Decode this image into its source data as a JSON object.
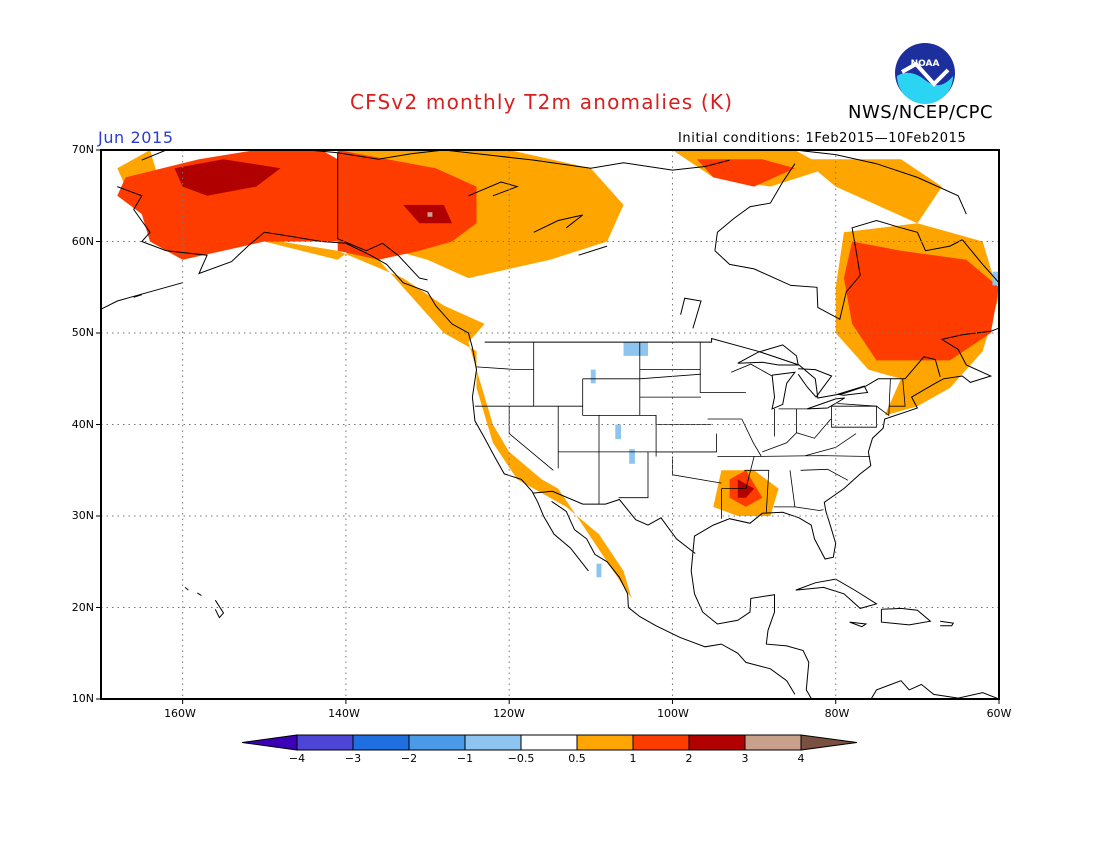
{
  "header": {
    "title": "CFSv2 monthly T2m anomalies (K)",
    "agency": "NWS/NCEP/CPC",
    "valid_month": "Jun 2015",
    "initial_conditions": "Initial conditions:  1Feb2015—10Feb2015",
    "logo_text": "NOAA"
  },
  "axes": {
    "lat_labels": [
      "70N",
      "60N",
      "50N",
      "40N",
      "30N",
      "20N",
      "10N"
    ],
    "lon_labels": [
      "160W",
      "140W",
      "120W",
      "100W",
      "80W",
      "60W"
    ]
  },
  "colorbar": {
    "labels": [
      "−4",
      "−3",
      "−2",
      "−1",
      "−0.5",
      "0.5",
      "1",
      "2",
      "3",
      "4"
    ],
    "colors": [
      "#3b00b8",
      "#4d45d6",
      "#1f6fe0",
      "#4a9ae8",
      "#8ec4f0",
      "#ffffff",
      "#ffa500",
      "#ff3c00",
      "#b00000",
      "#c8a08c",
      "#7a5040"
    ]
  },
  "map_data": {
    "colors": {
      "c05": "#ffa500",
      "c1": "#ff3c00",
      "c2": "#b00000",
      "c3": "#c8a08c",
      "cm05": "#8ec4f0"
    },
    "anomaly_regions": [
      {
        "level": "c05",
        "label": "0.5 to 1",
        "polys": [
          [
            [
              -164,
              70
            ],
            [
              -162,
              64
            ],
            [
              -155,
              62
            ],
            [
              -148,
              60
            ],
            [
              -141,
              59
            ],
            [
              -133,
              56
            ],
            [
              -128,
              53
            ],
            [
              -123,
              51
            ],
            [
              -125,
              49
            ],
            [
              -124,
              46
            ],
            [
              -122,
              40
            ],
            [
              -120,
              37
            ],
            [
              -116,
              34
            ],
            [
              -114,
              33
            ],
            [
              -111,
              29
            ],
            [
              -108,
              25
            ],
            [
              -105,
              21
            ],
            [
              -106,
              24
            ],
            [
              -109,
              28
            ],
            [
              -113,
              31
            ],
            [
              -117,
              33
            ],
            [
              -119,
              34
            ],
            [
              -122,
              38
            ],
            [
              -124,
              44
            ],
            [
              -124,
              48
            ],
            [
              -128,
              50
            ],
            [
              -134,
              56
            ],
            [
              -138,
              60
            ],
            [
              -141,
              58
            ],
            [
              -150,
              60
            ],
            [
              -156,
              62
            ],
            [
              -159,
              63
            ],
            [
              -166,
              64
            ],
            [
              -168,
              68
            ]
          ],
          [
            [
              -141,
              70
            ],
            [
              -120,
              70
            ],
            [
              -110,
              68
            ],
            [
              -106,
              64
            ],
            [
              -108,
              60
            ],
            [
              -115,
              58
            ],
            [
              -120,
              57
            ],
            [
              -125,
              56
            ],
            [
              -130,
              58
            ],
            [
              -138,
              60
            ],
            [
              -141,
              63
            ]
          ],
          [
            [
              -100,
              70
            ],
            [
              -85,
              70
            ],
            [
              -81,
              68
            ],
            [
              -88,
              66
            ],
            [
              -95,
              67
            ]
          ],
          [
            [
              -84,
              69
            ],
            [
              -72,
              69
            ],
            [
              -67,
              66
            ],
            [
              -70,
              62
            ],
            [
              -75,
              64
            ],
            [
              -80,
              66
            ]
          ],
          [
            [
              -79,
              61
            ],
            [
              -70,
              62
            ],
            [
              -62,
              60
            ],
            [
              -60,
              54
            ],
            [
              -62,
              48
            ],
            [
              -66,
              44
            ],
            [
              -70,
              42
            ],
            [
              -74,
              41
            ],
            [
              -72,
              45
            ],
            [
              -76,
              46
            ],
            [
              -80,
              50
            ],
            [
              -80,
              55
            ]
          ],
          [
            [
              -94,
              35
            ],
            [
              -90,
              35
            ],
            [
              -87,
              33
            ],
            [
              -88,
              30
            ],
            [
              -92,
              30
            ],
            [
              -95,
              31
            ]
          ]
        ]
      },
      {
        "level": "c1",
        "label": "1 to 2",
        "polys": [
          [
            [
              -167,
              67
            ],
            [
              -158,
              69
            ],
            [
              -151,
              70
            ],
            [
              -143,
              70
            ],
            [
              -141,
              69
            ],
            [
              -141,
              60
            ],
            [
              -145,
              60
            ],
            [
              -150,
              60
            ],
            [
              -155,
              59
            ],
            [
              -160,
              58
            ],
            [
              -164,
              60
            ],
            [
              -165,
              63
            ],
            [
              -168,
              65
            ]
          ],
          [
            [
              -141,
              70
            ],
            [
              -129,
              68
            ],
            [
              -124,
              66
            ],
            [
              -124,
              62
            ],
            [
              -127,
              60
            ],
            [
              -131,
              59
            ],
            [
              -136,
              58
            ],
            [
              -141,
              59
            ]
          ],
          [
            [
              -97,
              69
            ],
            [
              -89,
              69
            ],
            [
              -85,
              68
            ],
            [
              -90,
              66
            ],
            [
              -95,
              67
            ]
          ],
          [
            [
              -78,
              60
            ],
            [
              -72,
              59
            ],
            [
              -64,
              58
            ],
            [
              -60,
              55
            ],
            [
              -61,
              50
            ],
            [
              -66,
              47
            ],
            [
              -70,
              47
            ],
            [
              -75,
              47
            ],
            [
              -78,
              51
            ],
            [
              -79,
              56
            ]
          ],
          [
            [
              -93,
              34
            ],
            [
              -91,
              35
            ],
            [
              -89,
              32
            ],
            [
              -91,
              31
            ],
            [
              -93,
              32
            ]
          ]
        ]
      },
      {
        "level": "c2",
        "label": "2 to 3",
        "polys": [
          [
            [
              -161,
              68
            ],
            [
              -155,
              69
            ],
            [
              -148,
              68
            ],
            [
              -151,
              66
            ],
            [
              -157,
              65
            ],
            [
              -160,
              66
            ]
          ],
          [
            [
              -133,
              64
            ],
            [
              -128,
              64
            ],
            [
              -127,
              62
            ],
            [
              -131,
              62
            ]
          ],
          [
            [
              -92,
              34
            ],
            [
              -90,
              33
            ],
            [
              -91,
              32
            ],
            [
              -92,
              32
            ]
          ]
        ]
      },
      {
        "level": "c3",
        "label": "3 to 4",
        "polys": [
          [
            [
              -130,
              63.2
            ],
            [
              -129.4,
              63.2
            ],
            [
              -129.4,
              62.7
            ],
            [
              -130,
              62.7
            ]
          ]
        ]
      },
      {
        "level": "cm05",
        "label": "-1 to -0.5",
        "polys": [
          [
            [
              -106,
              49
            ],
            [
              -103,
              49
            ],
            [
              -103,
              47.5
            ],
            [
              -106,
              47.5
            ]
          ],
          [
            [
              -110,
              46
            ],
            [
              -109.4,
              46
            ],
            [
              -109.4,
              44.5
            ],
            [
              -110,
              44.5
            ]
          ],
          [
            [
              -107,
              40
            ],
            [
              -106.3,
              40
            ],
            [
              -106.3,
              38.4
            ],
            [
              -107,
              38.4
            ]
          ],
          [
            [
              -105.3,
              37.3
            ],
            [
              -104.6,
              37.3
            ],
            [
              -104.6,
              35.7
            ],
            [
              -105.3,
              35.7
            ]
          ],
          [
            [
              -109.3,
              24.8
            ],
            [
              -108.7,
              24.8
            ],
            [
              -108.7,
              23.3
            ],
            [
              -109.3,
              23.3
            ]
          ],
          [
            [
              -60.8,
              56.7
            ],
            [
              -60,
              56.7
            ],
            [
              -60,
              55.2
            ],
            [
              -60.8,
              55.2
            ]
          ]
        ]
      }
    ]
  }
}
